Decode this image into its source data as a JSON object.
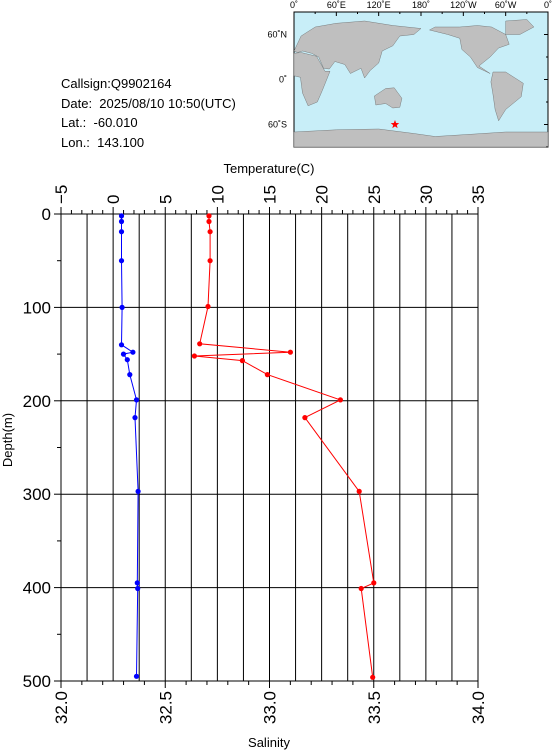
{
  "station": {
    "callsign_text": "Callsign:Q9902164",
    "date_text": "Date:  2025/08/10 10:50(UTC)",
    "lat_text": "Lat.:  -60.010",
    "lon_text": "Lon.:  143.100"
  },
  "map": {
    "top_labels": [
      "0˚",
      "60˚E",
      "120˚E",
      "180˚",
      "120˚W",
      "60˚W",
      "0˚"
    ],
    "right_labels": [
      "60˚N",
      "0˚",
      "60˚S"
    ],
    "ocean_color": "#c8eef8",
    "land_color": "#bfbfbf",
    "marker_color": "#ff0000",
    "marker_icon": "star-icon"
  },
  "chart_data": {
    "type": "line",
    "title": "",
    "ylabel": "Depth(m)",
    "ylim": [
      0,
      500
    ],
    "y_ticks": [
      "0",
      "100",
      "200",
      "300",
      "400",
      "500"
    ],
    "temperature_axis": {
      "label": "Temperature(C)",
      "lim": [
        -5,
        35
      ],
      "ticks": [
        "−5",
        "0",
        "5",
        "10",
        "15",
        "20",
        "25",
        "30",
        "35"
      ]
    },
    "salinity_axis": {
      "label": "Salinity",
      "lim": [
        32.0,
        34.0
      ],
      "ticks": [
        "32.0",
        "32.5",
        "33.0",
        "33.5",
        "34.0"
      ]
    },
    "grid": true,
    "series": [
      {
        "name": "Temperature(C)",
        "color": "#ff0000",
        "axis": "temperature",
        "points": [
          [
            9.2,
            2
          ],
          [
            9.2,
            8
          ],
          [
            9.3,
            19
          ],
          [
            9.3,
            50
          ],
          [
            9.1,
            99
          ],
          [
            8.3,
            139
          ],
          [
            17.0,
            148
          ],
          [
            7.8,
            152
          ],
          [
            12.4,
            157
          ],
          [
            14.8,
            172
          ],
          [
            21.8,
            199
          ],
          [
            18.4,
            218
          ],
          [
            23.6,
            297
          ],
          [
            25.0,
            395
          ],
          [
            23.8,
            401
          ],
          [
            24.9,
            496
          ]
        ]
      },
      {
        "name": "Salinity",
        "color": "#0000ff",
        "axis": "salinity",
        "points": [
          [
            32.29,
            2
          ],
          [
            32.29,
            8
          ],
          [
            32.29,
            19
          ],
          [
            32.29,
            50
          ],
          [
            32.293,
            100
          ],
          [
            32.29,
            140
          ],
          [
            32.345,
            148
          ],
          [
            32.3,
            150
          ],
          [
            32.318,
            156
          ],
          [
            32.33,
            172
          ],
          [
            32.362,
            199
          ],
          [
            32.355,
            218
          ],
          [
            32.37,
            297
          ],
          [
            32.366,
            395
          ],
          [
            32.368,
            401
          ],
          [
            32.362,
            495
          ]
        ]
      }
    ]
  }
}
